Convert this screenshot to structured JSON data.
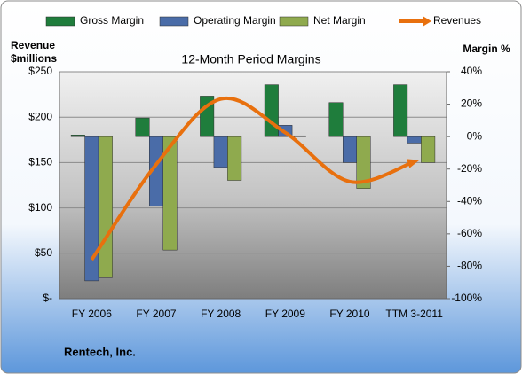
{
  "chart_data": {
    "type": "bar-line",
    "title": "12-Month Period Margins",
    "ylabel": [
      "Revenue",
      "$millions"
    ],
    "y2label": "Margin %",
    "footer": "Rentech, Inc.",
    "categories": [
      "FY 2006",
      "FY 2007",
      "FY 2008",
      "FY 2009",
      "FY 2010",
      "TTM 3-2011"
    ],
    "series": [
      {
        "name": "Gross Margin",
        "color": "#1f7d3c",
        "axis": "y2",
        "type": "bar",
        "values": [
          1,
          11.5,
          25,
          32,
          21,
          32
        ]
      },
      {
        "name": "Operating Margin",
        "color": "#4a6ca8",
        "axis": "y2",
        "type": "bar",
        "values": [
          -89,
          -43,
          -19,
          7,
          -16,
          -4
        ]
      },
      {
        "name": "Net Margin",
        "color": "#8faa4e",
        "axis": "y2",
        "type": "bar",
        "values": [
          -87,
          -70,
          -27,
          0.5,
          -32,
          -16
        ]
      },
      {
        "name": "Revenues",
        "color": "#e8700e",
        "axis": "y",
        "type": "line",
        "values": [
          43,
          148,
          220,
          183,
          129,
          151
        ]
      }
    ],
    "ylim": [
      0,
      250
    ],
    "yticks": [
      {
        "value": 0,
        "label": "$-"
      },
      {
        "value": 50,
        "label": "$50"
      },
      {
        "value": 100,
        "label": "$100"
      },
      {
        "value": 150,
        "label": "$150"
      },
      {
        "value": 200,
        "label": "$200"
      },
      {
        "value": 250,
        "label": "$250"
      }
    ],
    "y2lim": [
      -100,
      40
    ],
    "y2ticks": [
      {
        "value": -100,
        "label": "-100%"
      },
      {
        "value": -80,
        "label": "-80%"
      },
      {
        "value": -60,
        "label": "-60%"
      },
      {
        "value": -40,
        "label": "-40%"
      },
      {
        "value": -20,
        "label": "-20%"
      },
      {
        "value": 0,
        "label": "0%"
      },
      {
        "value": 20,
        "label": "20%"
      },
      {
        "value": 40,
        "label": "40%"
      }
    ],
    "grid": true
  }
}
